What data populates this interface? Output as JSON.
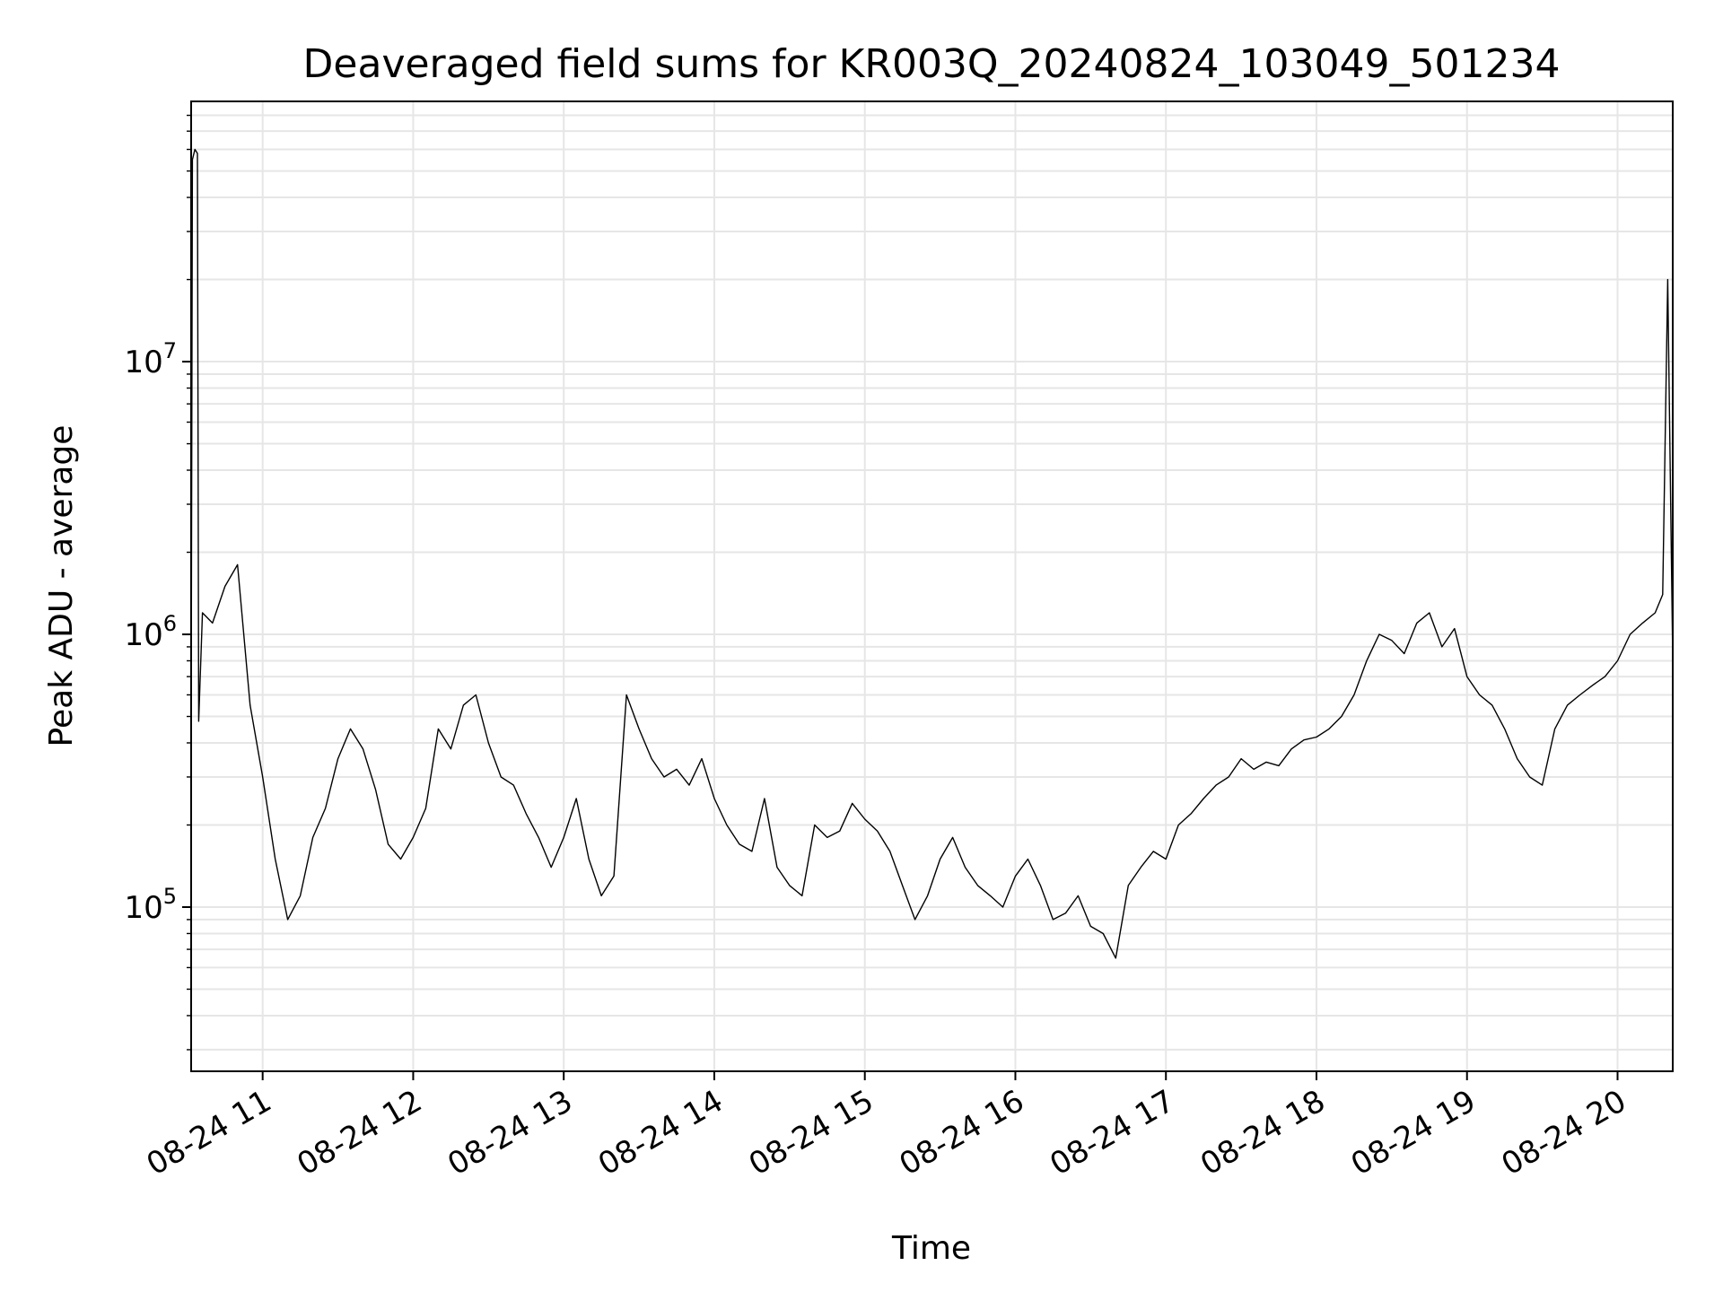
{
  "chart_data": {
    "type": "line",
    "title": "Deaveraged field sums for KR003Q_20240824_103049_501234",
    "xlabel": "Time",
    "ylabel": "Peak ADU - average",
    "y_scale": "log",
    "ylim": [
      25000,
      90000000
    ],
    "xlim": [
      "2024-08-24 10:31:30",
      "2024-08-24 20:22:00"
    ],
    "grid": true,
    "legend": "none",
    "line_color": "#000000",
    "grid_color": "#e6e6e6",
    "x_ticks": [
      "2024-08-24 11:00",
      "2024-08-24 12:00",
      "2024-08-24 13:00",
      "2024-08-24 14:00",
      "2024-08-24 15:00",
      "2024-08-24 16:00",
      "2024-08-24 17:00",
      "2024-08-24 18:00",
      "2024-08-24 19:00",
      "2024-08-24 20:00"
    ],
    "x_tick_labels": [
      "08-24 11",
      "08-24 12",
      "08-24 13",
      "08-24 14",
      "08-24 15",
      "08-24 16",
      "08-24 17",
      "08-24 18",
      "08-24 19",
      "08-24 20"
    ],
    "y_ticks": [
      {
        "value": 100000,
        "base": "10",
        "exp": "5"
      },
      {
        "value": 1000000,
        "base": "10",
        "exp": "6"
      },
      {
        "value": 10000000,
        "base": "10",
        "exp": "7"
      }
    ],
    "x_times": [
      "2024-08-24 10:31:30",
      "2024-08-24 10:32:00",
      "2024-08-24 10:33:00",
      "2024-08-24 10:34:00",
      "2024-08-24 10:34:30",
      "2024-08-24 10:36:00",
      "2024-08-24 10:40:00",
      "2024-08-24 10:45:00",
      "2024-08-24 10:50:00",
      "2024-08-24 10:55:00",
      "2024-08-24 11:00:00",
      "2024-08-24 11:05:00",
      "2024-08-24 11:10:00",
      "2024-08-24 11:15:00",
      "2024-08-24 11:20:00",
      "2024-08-24 11:25:00",
      "2024-08-24 11:30:00",
      "2024-08-24 11:35:00",
      "2024-08-24 11:40:00",
      "2024-08-24 11:45:00",
      "2024-08-24 11:50:00",
      "2024-08-24 11:55:00",
      "2024-08-24 12:00:00",
      "2024-08-24 12:05:00",
      "2024-08-24 12:10:00",
      "2024-08-24 12:15:00",
      "2024-08-24 12:20:00",
      "2024-08-24 12:25:00",
      "2024-08-24 12:30:00",
      "2024-08-24 12:35:00",
      "2024-08-24 12:40:00",
      "2024-08-24 12:45:00",
      "2024-08-24 12:50:00",
      "2024-08-24 12:55:00",
      "2024-08-24 13:00:00",
      "2024-08-24 13:05:00",
      "2024-08-24 13:10:00",
      "2024-08-24 13:15:00",
      "2024-08-24 13:20:00",
      "2024-08-24 13:25:00",
      "2024-08-24 13:30:00",
      "2024-08-24 13:35:00",
      "2024-08-24 13:40:00",
      "2024-08-24 13:45:00",
      "2024-08-24 13:50:00",
      "2024-08-24 13:55:00",
      "2024-08-24 14:00:00",
      "2024-08-24 14:05:00",
      "2024-08-24 14:10:00",
      "2024-08-24 14:15:00",
      "2024-08-24 14:20:00",
      "2024-08-24 14:25:00",
      "2024-08-24 14:30:00",
      "2024-08-24 14:35:00",
      "2024-08-24 14:40:00",
      "2024-08-24 14:45:00",
      "2024-08-24 14:50:00",
      "2024-08-24 14:55:00",
      "2024-08-24 15:00:00",
      "2024-08-24 15:05:00",
      "2024-08-24 15:10:00",
      "2024-08-24 15:15:00",
      "2024-08-24 15:20:00",
      "2024-08-24 15:25:00",
      "2024-08-24 15:30:00",
      "2024-08-24 15:35:00",
      "2024-08-24 15:40:00",
      "2024-08-24 15:45:00",
      "2024-08-24 15:50:00",
      "2024-08-24 15:55:00",
      "2024-08-24 16:00:00",
      "2024-08-24 16:05:00",
      "2024-08-24 16:10:00",
      "2024-08-24 16:15:00",
      "2024-08-24 16:20:00",
      "2024-08-24 16:25:00",
      "2024-08-24 16:30:00",
      "2024-08-24 16:35:00",
      "2024-08-24 16:40:00",
      "2024-08-24 16:45:00",
      "2024-08-24 16:50:00",
      "2024-08-24 16:55:00",
      "2024-08-24 17:00:00",
      "2024-08-24 17:05:00",
      "2024-08-24 17:10:00",
      "2024-08-24 17:15:00",
      "2024-08-24 17:20:00",
      "2024-08-24 17:25:00",
      "2024-08-24 17:30:00",
      "2024-08-24 17:35:00",
      "2024-08-24 17:40:00",
      "2024-08-24 17:45:00",
      "2024-08-24 17:50:00",
      "2024-08-24 17:55:00",
      "2024-08-24 18:00:00",
      "2024-08-24 18:05:00",
      "2024-08-24 18:10:00",
      "2024-08-24 18:15:00",
      "2024-08-24 18:20:00",
      "2024-08-24 18:25:00",
      "2024-08-24 18:30:00",
      "2024-08-24 18:35:00",
      "2024-08-24 18:40:00",
      "2024-08-24 18:45:00",
      "2024-08-24 18:50:00",
      "2024-08-24 18:55:00",
      "2024-08-24 19:00:00",
      "2024-08-24 19:05:00",
      "2024-08-24 19:10:00",
      "2024-08-24 19:15:00",
      "2024-08-24 19:20:00",
      "2024-08-24 19:25:00",
      "2024-08-24 19:30:00",
      "2024-08-24 19:35:00",
      "2024-08-24 19:40:00",
      "2024-08-24 19:45:00",
      "2024-08-24 19:50:00",
      "2024-08-24 19:55:00",
      "2024-08-24 20:00:00",
      "2024-08-24 20:05:00",
      "2024-08-24 20:10:00",
      "2024-08-24 20:15:00",
      "2024-08-24 20:18:00",
      "2024-08-24 20:20:00",
      "2024-08-24 20:22:00"
    ],
    "y_values": [
      450000,
      55000000,
      60000000,
      58000000,
      480000,
      1200000,
      1100000,
      1500000,
      1800000,
      550000,
      300000,
      150000,
      90000,
      110000,
      180000,
      230000,
      350000,
      450000,
      380000,
      270000,
      170000,
      150000,
      180000,
      230000,
      450000,
      380000,
      550000,
      600000,
      400000,
      300000,
      280000,
      220000,
      180000,
      140000,
      180000,
      250000,
      150000,
      110000,
      130000,
      600000,
      450000,
      350000,
      300000,
      320000,
      280000,
      350000,
      250000,
      200000,
      170000,
      160000,
      250000,
      140000,
      120000,
      110000,
      200000,
      180000,
      190000,
      240000,
      210000,
      190000,
      160000,
      120000,
      90000,
      110000,
      150000,
      180000,
      140000,
      120000,
      110000,
      100000,
      130000,
      150000,
      120000,
      90000,
      95000,
      110000,
      85000,
      80000,
      65000,
      120000,
      140000,
      160000,
      150000,
      200000,
      220000,
      250000,
      280000,
      300000,
      350000,
      320000,
      340000,
      330000,
      380000,
      410000,
      420000,
      450000,
      500000,
      600000,
      800000,
      1000000,
      950000,
      850000,
      1100000,
      1200000,
      900000,
      1050000,
      700000,
      600000,
      550000,
      450000,
      350000,
      300000,
      280000,
      450000,
      550000,
      600000,
      650000,
      700000,
      800000,
      1000000,
      1100000,
      1200000,
      1400000,
      20000000,
      800000
    ]
  }
}
